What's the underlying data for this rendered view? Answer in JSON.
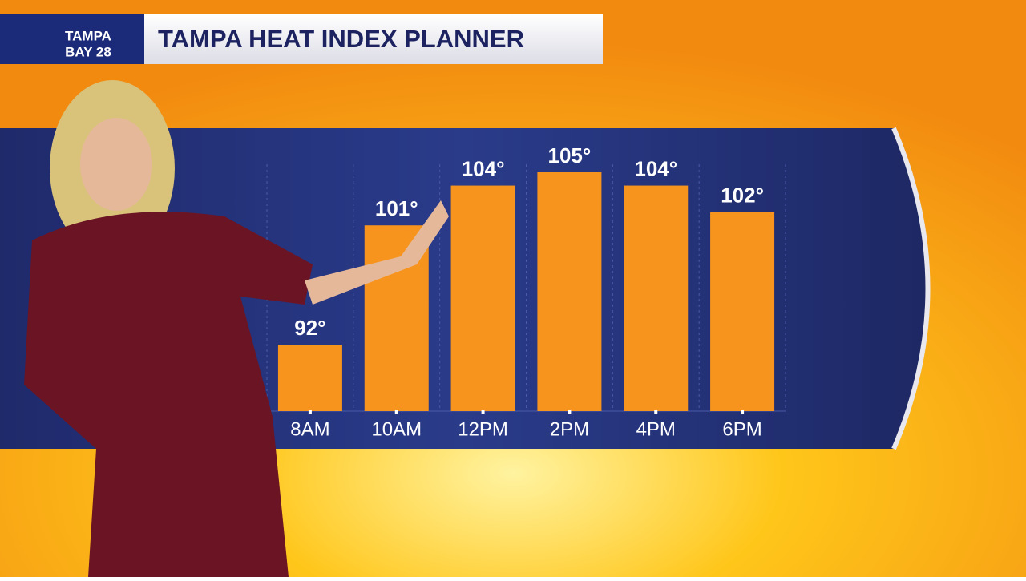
{
  "header": {
    "logo": [
      "TAMPA",
      "BAY 28"
    ]
  },
  "chart_data": {
    "type": "bar",
    "title": "TAMPA HEAT INDEX PLANNER",
    "categories": [
      "8AM",
      "10AM",
      "12PM",
      "2PM",
      "4PM",
      "6PM"
    ],
    "values": [
      92,
      101,
      104,
      105,
      104,
      102
    ],
    "value_labels": [
      "92°",
      "101°",
      "104°",
      "105°",
      "104°",
      "102°"
    ],
    "color": "#f7941d",
    "ylim": [
      87,
      105
    ]
  }
}
